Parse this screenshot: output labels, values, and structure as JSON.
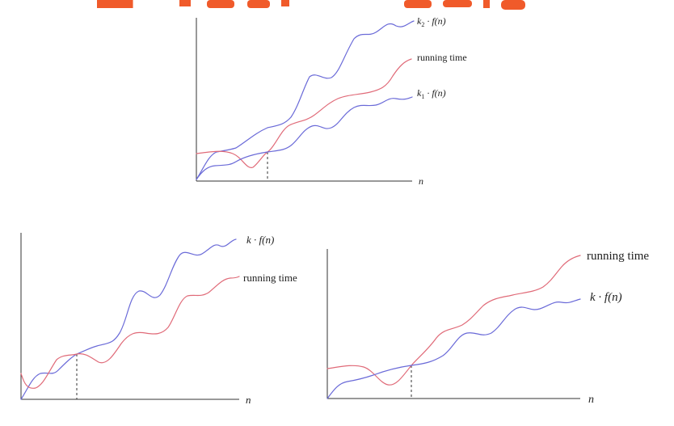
{
  "top_graph": {
    "upper_label_prefix": "k",
    "upper_label_sub": "2",
    "upper_label_suffix": " · f(n)",
    "middle_label": "running time",
    "lower_label_prefix": "k",
    "lower_label_sub": "1",
    "lower_label_suffix": " · f(n)",
    "x_label": "n"
  },
  "left_graph": {
    "upper_label": "k · f(n)",
    "lower_label": "running time",
    "x_label": "n"
  },
  "right_graph": {
    "upper_label": "running time",
    "lower_label": "k · f(n)",
    "x_label": "n"
  },
  "colors": {
    "upper_bound_curve": "#6a6ad8",
    "running_time_curve": "#e06a78",
    "title_fragment": "#f05a2a"
  }
}
